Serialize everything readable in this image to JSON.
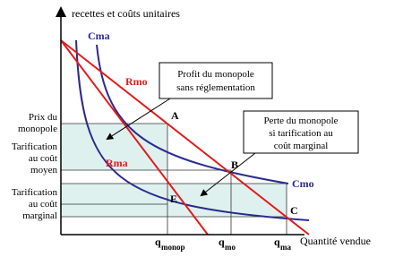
{
  "y_axis_label": "recettes et coûts unitaires",
  "x_axis_label": "Quantité vendue",
  "curves": {
    "cma": "Cma",
    "cmo": "Cmo",
    "rmo": "Rmo",
    "rma": "Rma"
  },
  "points": {
    "a": "A",
    "b": "B",
    "c": "C",
    "e": "E"
  },
  "y_labels": [
    [
      "Prix du",
      "monopole"
    ],
    [
      "Tarification",
      "au coût",
      "moyen"
    ],
    [
      "Tarification",
      "au coût",
      "marginal"
    ]
  ],
  "x_labels": [
    {
      "base": "q",
      "sub": "monop"
    },
    {
      "base": "q",
      "sub": "mo"
    },
    {
      "base": "q",
      "sub": "ma"
    }
  ],
  "callouts": [
    [
      "Profit du monopole",
      "sans réglementation"
    ],
    [
      "Perte du monopole",
      "si tarification au",
      "coût marginal"
    ]
  ]
}
